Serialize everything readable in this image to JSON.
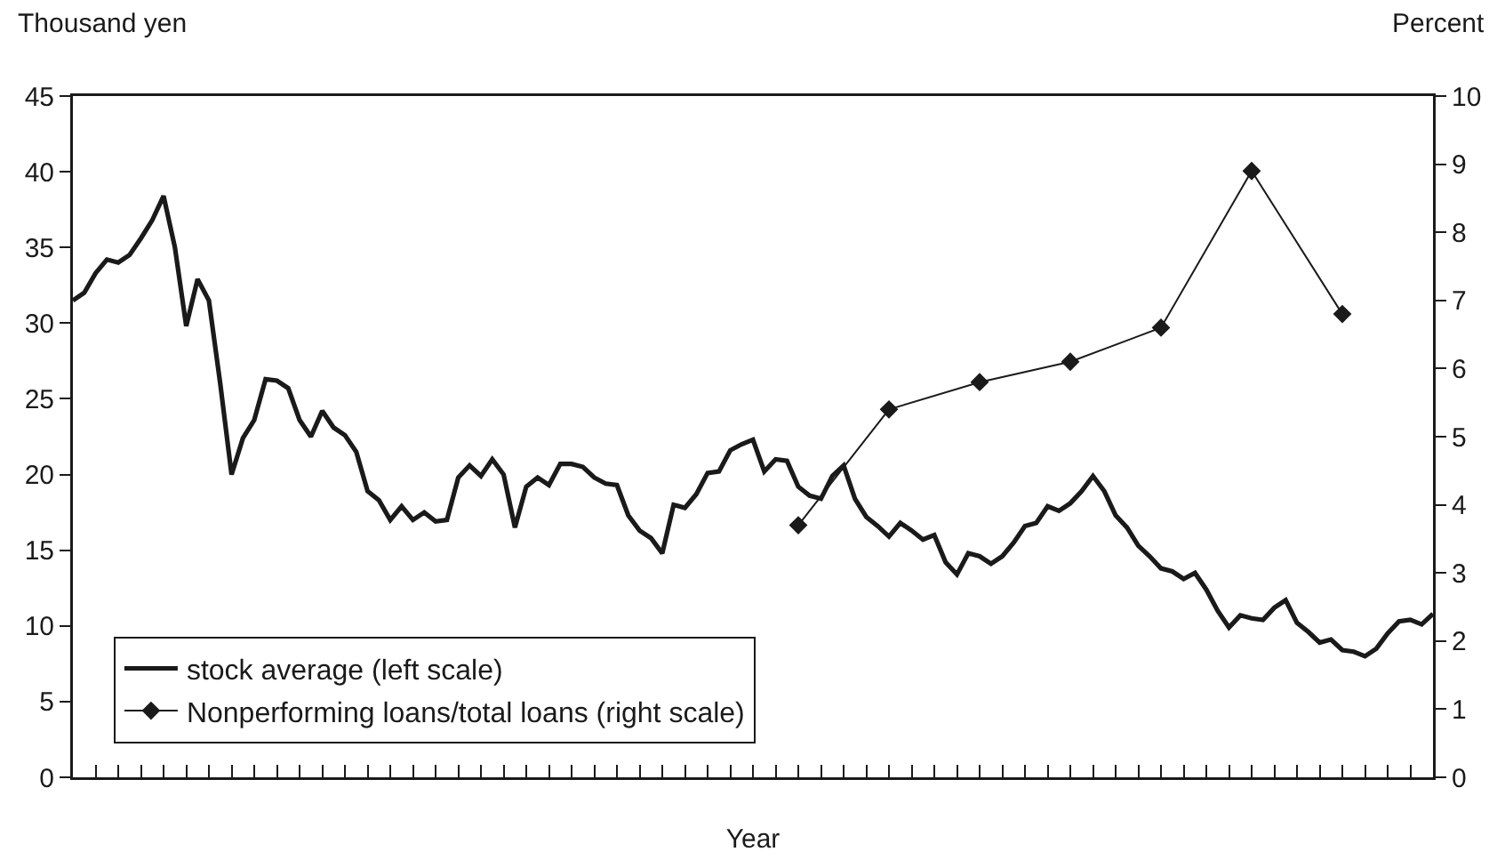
{
  "chart_data": {
    "type": "line",
    "xlabel": "Year",
    "ylabel": "Thousand yen",
    "y2label": "Percent",
    "categories": [
      null,
      null,
      null,
      null,
      null,
      null,
      null,
      null,
      null,
      null,
      null,
      null,
      null,
      null,
      null,
      null,
      null,
      null,
      null,
      null,
      null,
      null,
      null,
      null,
      null,
      null,
      null,
      null,
      null,
      null,
      null,
      null,
      null,
      null,
      null,
      null,
      null,
      null,
      null,
      null,
      null,
      null,
      null,
      null,
      null,
      null,
      null,
      null,
      null,
      null,
      null,
      null,
      null,
      null,
      null,
      null,
      null,
      null,
      null,
      null,
      null,
      null,
      null,
      null,
      null,
      null,
      null,
      null,
      null,
      null,
      null,
      null,
      null,
      null,
      null,
      null,
      null,
      null,
      null,
      null,
      null,
      null,
      null,
      null,
      null,
      null,
      null,
      null,
      null,
      null,
      null,
      null,
      null,
      null,
      null,
      null,
      null,
      null,
      null,
      null,
      null,
      null,
      null,
      null,
      null,
      null,
      null,
      null,
      null,
      null,
      null,
      null,
      null,
      null,
      null,
      null,
      null,
      null,
      null,
      null,
      null
    ],
    "ylim": [
      0,
      45
    ],
    "yticks": [
      0,
      5,
      10,
      15,
      20,
      25,
      30,
      35,
      40,
      45
    ],
    "y2lim": [
      0,
      10
    ],
    "y2ticks": [
      0,
      1,
      2,
      3,
      4,
      5,
      6,
      7,
      8,
      9,
      10
    ],
    "grid": false,
    "legend": "bottom left",
    "tick_labels": "y",
    "series": [
      {
        "name": "stock average (left scale)",
        "color": "#1a1a1a",
        "marker": "none",
        "values": [
          31.5,
          32,
          33.3,
          34.2,
          34,
          34.5,
          35.6,
          36.8,
          38.4,
          35,
          29.8,
          32.9,
          31.5,
          26,
          20,
          22.4,
          23.6,
          26.3,
          26.2,
          25.7,
          23.6,
          22.5,
          24.2,
          23.1,
          22.6,
          21.5,
          18.9,
          18.3,
          17,
          17.9,
          17,
          17.5,
          16.9,
          17,
          19.8,
          20.6,
          19.9,
          21,
          20,
          16.5,
          19.2,
          19.8,
          19.3,
          20.7,
          20.7,
          20.5,
          19.8,
          19.4,
          19.3,
          17.3,
          16.3,
          15.8,
          14.8,
          18,
          17.8,
          18.7,
          20.1,
          20.2,
          21.6,
          22,
          22.3,
          20.2,
          21,
          20.9,
          19.2,
          18.6,
          18.4,
          19.9,
          20.6,
          18.4,
          17.2,
          16.6,
          15.9,
          16.8,
          16.3,
          15.7,
          16,
          14.2,
          13.4,
          14.8,
          14.6,
          14.1,
          14.6,
          15.5,
          16.6,
          16.8,
          17.9,
          17.6,
          18.1,
          18.9,
          19.9,
          18.9,
          17.3,
          16.5,
          15.3,
          14.6,
          13.8,
          13.6,
          13.1,
          13.5,
          12.4,
          11,
          9.9,
          10.7,
          10.5,
          10.4,
          11.2,
          11.7,
          10.2,
          9.6,
          8.9,
          9.1,
          8.4,
          8.3,
          8,
          8.5,
          9.5,
          10.3,
          10.4,
          10.1,
          10.8
        ]
      },
      {
        "name": "Nonperforming loans/total loans (right scale)",
        "color": "#1a1a1a",
        "marker": "diamond",
        "axis": "y2",
        "values": [
          null,
          null,
          null,
          null,
          null,
          null,
          null,
          null,
          null,
          null,
          null,
          null,
          null,
          null,
          null,
          null,
          null,
          null,
          null,
          null,
          null,
          null,
          null,
          null,
          null,
          null,
          null,
          null,
          null,
          null,
          null,
          null,
          null,
          null,
          null,
          null,
          null,
          null,
          null,
          null,
          null,
          null,
          null,
          null,
          null,
          null,
          null,
          null,
          null,
          null,
          null,
          null,
          null,
          null,
          null,
          null,
          null,
          null,
          null,
          null,
          null,
          null,
          null,
          null,
          3.7,
          null,
          null,
          null,
          null,
          null,
          null,
          null,
          5.4,
          null,
          null,
          null,
          null,
          null,
          null,
          null,
          5.8,
          null,
          null,
          null,
          null,
          null,
          null,
          null,
          6.1,
          null,
          null,
          null,
          null,
          null,
          null,
          null,
          6.6,
          null,
          null,
          null,
          null,
          null,
          null,
          null,
          8.9,
          null,
          null,
          null,
          null,
          null,
          null,
          null,
          6.8,
          null,
          null,
          null,
          null,
          null,
          null,
          null,
          null
        ]
      }
    ]
  }
}
